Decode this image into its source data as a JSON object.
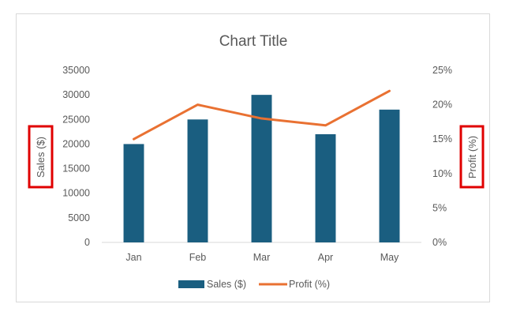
{
  "chart_data": {
    "type": "bar",
    "title": "Chart Title",
    "categories": [
      "Jan",
      "Feb",
      "Mar",
      "Apr",
      "May"
    ],
    "series": [
      {
        "name": "Sales ($)",
        "type": "bar",
        "axis": "left",
        "color": "#1a5e80",
        "values": [
          20000,
          25000,
          30000,
          22000,
          27000
        ]
      },
      {
        "name": "Profit (%)",
        "type": "line",
        "axis": "right",
        "color": "#e97132",
        "values": [
          15,
          20,
          18,
          17,
          22
        ]
      }
    ],
    "ylabel": "Sales ($)",
    "y2label": "Profit (%)",
    "ylim": [
      0,
      35000
    ],
    "y2lim": [
      0,
      25
    ],
    "yticks": [
      "0",
      "5000",
      "10000",
      "15000",
      "20000",
      "25000",
      "30000",
      "35000"
    ],
    "y2ticks": [
      "0%",
      "5%",
      "10%",
      "15%",
      "20%",
      "25%"
    ],
    "grid": false,
    "legend": "bottom",
    "highlight_color": "#e00000"
  }
}
